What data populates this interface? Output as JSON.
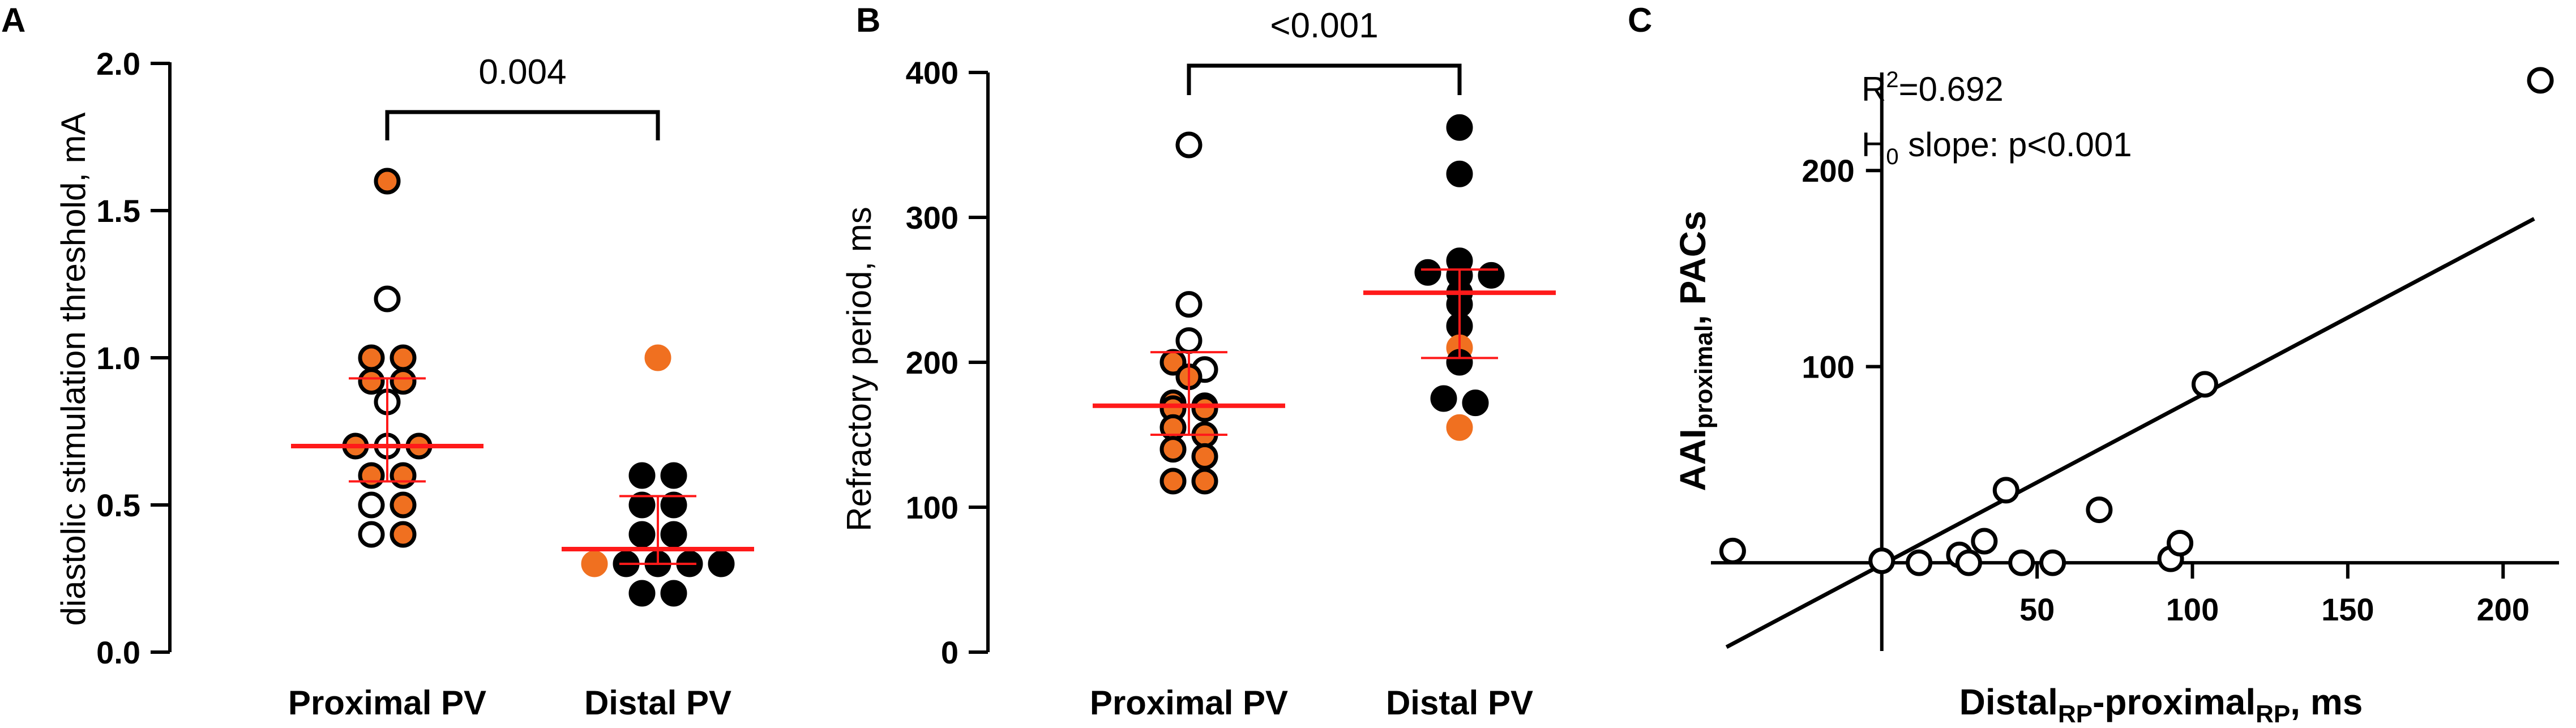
{
  "colors": {
    "orange": "#f07020",
    "black": "#000000",
    "white": "#ffffff",
    "red": "#ff1a1a"
  },
  "chart_data": [
    {
      "type": "scatter",
      "panel": "A",
      "ylabel": "diastolic stimulation threshold, mA",
      "ylim": [
        0,
        2.0
      ],
      "yticks": [
        "0.0",
        "0.5",
        "1.0",
        "1.5",
        "2.0"
      ],
      "categories": [
        "Proximal PV",
        "Distal PV"
      ],
      "significance": "0.004",
      "groups": [
        {
          "name": "Proximal PV",
          "median": 0.7,
          "iqr": [
            0.58,
            0.93
          ],
          "points": [
            {
              "y": 1.6,
              "style": "orange-ring"
            },
            {
              "y": 1.2,
              "style": "open"
            },
            {
              "y": 1.0,
              "style": "orange-ring"
            },
            {
              "y": 1.0,
              "style": "orange-ring"
            },
            {
              "y": 0.92,
              "style": "orange-ring"
            },
            {
              "y": 0.92,
              "style": "orange-ring"
            },
            {
              "y": 0.85,
              "style": "open"
            },
            {
              "y": 0.7,
              "style": "orange-ring"
            },
            {
              "y": 0.7,
              "style": "open"
            },
            {
              "y": 0.7,
              "style": "orange-ring"
            },
            {
              "y": 0.6,
              "style": "orange-ring"
            },
            {
              "y": 0.6,
              "style": "orange-ring"
            },
            {
              "y": 0.5,
              "style": "open"
            },
            {
              "y": 0.5,
              "style": "orange-ring"
            },
            {
              "y": 0.4,
              "style": "open"
            },
            {
              "y": 0.4,
              "style": "orange-ring"
            }
          ]
        },
        {
          "name": "Distal PV",
          "median": 0.35,
          "iqr": [
            0.3,
            0.53
          ],
          "points": [
            {
              "y": 1.0,
              "style": "orange"
            },
            {
              "y": 0.6,
              "style": "black"
            },
            {
              "y": 0.6,
              "style": "black"
            },
            {
              "y": 0.5,
              "style": "black"
            },
            {
              "y": 0.5,
              "style": "black"
            },
            {
              "y": 0.4,
              "style": "black"
            },
            {
              "y": 0.4,
              "style": "black"
            },
            {
              "y": 0.3,
              "style": "orange"
            },
            {
              "y": 0.3,
              "style": "black"
            },
            {
              "y": 0.3,
              "style": "black"
            },
            {
              "y": 0.3,
              "style": "black"
            },
            {
              "y": 0.3,
              "style": "black"
            },
            {
              "y": 0.2,
              "style": "black"
            },
            {
              "y": 0.2,
              "style": "black"
            }
          ]
        }
      ]
    },
    {
      "type": "scatter",
      "panel": "B",
      "ylabel": "Refractory period, ms",
      "ylim": [
        0,
        400
      ],
      "yticks": [
        "0",
        "100",
        "200",
        "300",
        "400"
      ],
      "categories": [
        "Proximal PV",
        "Distal PV"
      ],
      "significance": "<0.001",
      "groups": [
        {
          "name": "Proximal PV",
          "median": 170,
          "iqr": [
            150,
            207
          ],
          "points": [
            {
              "y": 350,
              "style": "open"
            },
            {
              "y": 240,
              "style": "open"
            },
            {
              "y": 215,
              "style": "open"
            },
            {
              "y": 200,
              "style": "orange-ring"
            },
            {
              "y": 195,
              "style": "open"
            },
            {
              "y": 190,
              "style": "orange-ring"
            },
            {
              "y": 172,
              "style": "orange-ring"
            },
            {
              "y": 170,
              "style": "orange-ring"
            },
            {
              "y": 168,
              "style": "orange-ring"
            },
            {
              "y": 168,
              "style": "orange-ring"
            },
            {
              "y": 155,
              "style": "orange-ring"
            },
            {
              "y": 150,
              "style": "orange-ring"
            },
            {
              "y": 140,
              "style": "orange-ring"
            },
            {
              "y": 135,
              "style": "orange-ring"
            },
            {
              "y": 118,
              "style": "orange-ring"
            },
            {
              "y": 118,
              "style": "orange-ring"
            }
          ]
        },
        {
          "name": "Distal PV",
          "median": 248,
          "iqr": [
            203,
            264
          ],
          "points": [
            {
              "y": 362,
              "style": "black"
            },
            {
              "y": 330,
              "style": "black"
            },
            {
              "y": 270,
              "style": "black"
            },
            {
              "y": 262,
              "style": "black"
            },
            {
              "y": 260,
              "style": "black"
            },
            {
              "y": 260,
              "style": "black"
            },
            {
              "y": 248,
              "style": "black"
            },
            {
              "y": 240,
              "style": "black"
            },
            {
              "y": 225,
              "style": "black"
            },
            {
              "y": 210,
              "style": "orange"
            },
            {
              "y": 200,
              "style": "black"
            },
            {
              "y": 175,
              "style": "black"
            },
            {
              "y": 172,
              "style": "black"
            },
            {
              "y": 155,
              "style": "orange"
            }
          ]
        }
      ]
    },
    {
      "type": "scatter",
      "panel": "C",
      "ylabel_main": "AAI",
      "ylabel_sub": "proximal",
      "ylabel_tail": ", PACs",
      "xlabel_a": "Distal",
      "xlabel_a_sub": "RP",
      "xlabel_b": "-proximal",
      "xlabel_b_sub": "RP",
      "xlabel_tail": ", ms",
      "xlim": [
        -55,
        218
      ],
      "ylim": [
        -45,
        250
      ],
      "xticks": [
        "50",
        "100",
        "150",
        "200"
      ],
      "yticks": [
        "100",
        "200"
      ],
      "r2_label": "R",
      "r2_sup": "2",
      "r2_value": "=0.692",
      "h0_label": "H",
      "h0_sub": "0",
      "h0_value": " slope: p<0.001",
      "regression": {
        "slope": 0.84,
        "intercept": -1.0,
        "x_range": [
          -50,
          210
        ]
      },
      "points": [
        {
          "x": -48,
          "y": 6
        },
        {
          "x": 0,
          "y": 1
        },
        {
          "x": 12,
          "y": 0
        },
        {
          "x": 25,
          "y": 4
        },
        {
          "x": 28,
          "y": 0
        },
        {
          "x": 33,
          "y": 11
        },
        {
          "x": 40,
          "y": 37
        },
        {
          "x": 45,
          "y": 0
        },
        {
          "x": 55,
          "y": 0
        },
        {
          "x": 70,
          "y": 27
        },
        {
          "x": 93,
          "y": 2
        },
        {
          "x": 96,
          "y": 10
        },
        {
          "x": 104,
          "y": 91
        },
        {
          "x": 212,
          "y": 246
        }
      ]
    }
  ]
}
